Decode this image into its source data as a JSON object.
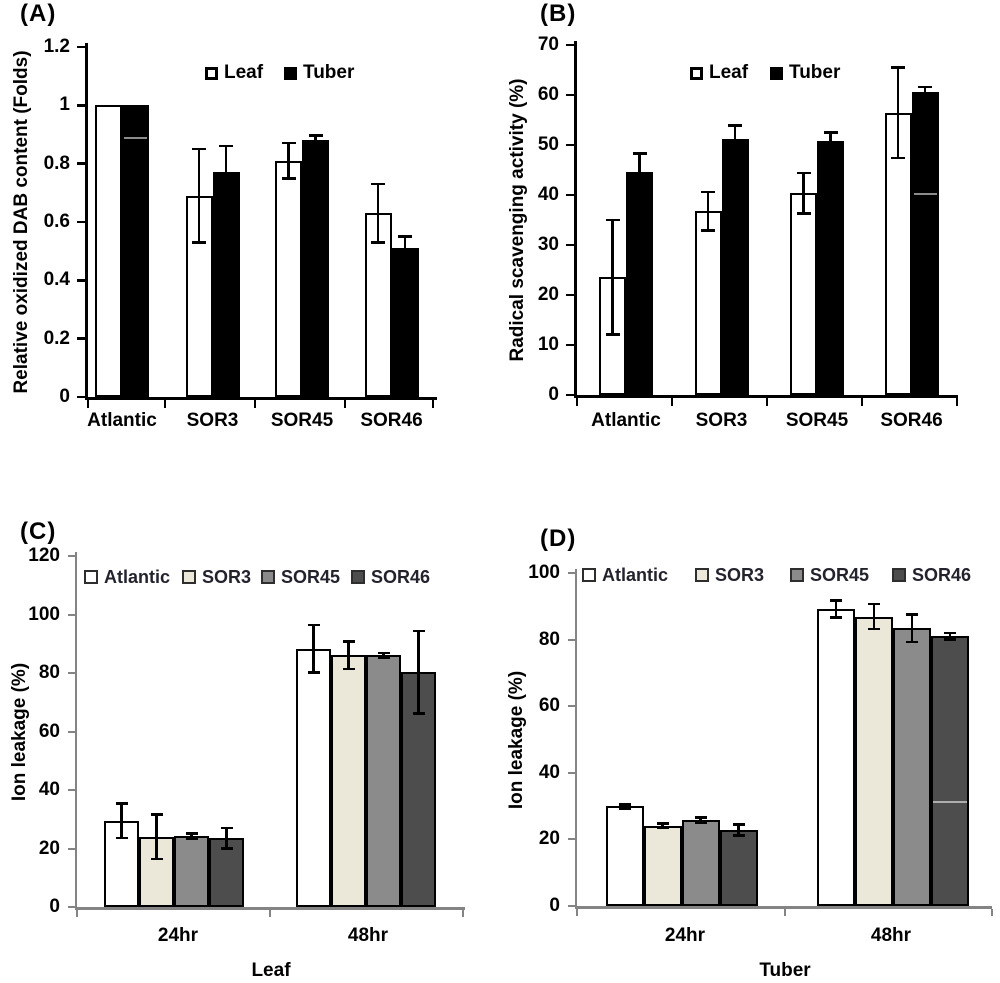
{
  "figure": {
    "background": "#ffffff",
    "panel_labels": [
      "(A)",
      "(B)",
      "(C)",
      "(D)"
    ]
  },
  "colors": {
    "bar_outline": "#000000",
    "axis_black": "#000000",
    "axis_gray": "#848484",
    "series_atlantic": "#ffffff",
    "series_sor3": "#ebe7d9",
    "series_sor45": "#8b8b8b",
    "series_sor46": "#4d4d4d",
    "legend_text_dark": "#23232e"
  },
  "chart_data": [
    {
      "panel": "(A)",
      "type": "bar",
      "title": "",
      "ylabel": "Relative oxidized DAB content (Folds)",
      "xlabel": "",
      "ylim": [
        0,
        1.2
      ],
      "yticks": [
        0,
        0.2,
        0.4,
        0.6,
        0.8,
        1,
        1.2
      ],
      "ytick_labels": [
        "0",
        "0.2",
        "0.4",
        "0.6",
        "0.8",
        "1",
        "1.2"
      ],
      "categories": [
        "Atlantic",
        "SOR3",
        "SOR45",
        "SOR46"
      ],
      "series": [
        {
          "name": "Leaf",
          "color": "#ffffff",
          "values": [
            1.0,
            0.69,
            0.81,
            0.63
          ],
          "errors": [
            0,
            0.16,
            0.06,
            0.1
          ]
        },
        {
          "name": "Tuber",
          "color": "#000000",
          "values": [
            1.0,
            0.77,
            0.88,
            0.51
          ],
          "errors": [
            0,
            0.09,
            0.015,
            0.04
          ]
        }
      ],
      "legend": {
        "entries": [
          "Leaf",
          "Tuber"
        ],
        "position": "top-center-inside"
      },
      "grid": false,
      "inner_lines": [
        {
          "category": "Atlantic",
          "series": "Tuber",
          "value": 0.89
        }
      ]
    },
    {
      "panel": "(B)",
      "type": "bar",
      "title": "",
      "ylabel": "Radical scavenging activity (%)",
      "xlabel": "",
      "ylim": [
        0,
        70
      ],
      "yticks": [
        0,
        10,
        20,
        30,
        40,
        50,
        60,
        70
      ],
      "ytick_labels": [
        "0",
        "10",
        "20",
        "30",
        "40",
        "50",
        "60",
        "70"
      ],
      "categories": [
        "Atlantic",
        "SOR3",
        "SOR45",
        "SOR46"
      ],
      "series": [
        {
          "name": "Leaf",
          "color": "#ffffff",
          "values": [
            23.6,
            36.8,
            40.4,
            56.5
          ],
          "errors": [
            11.4,
            3.8,
            4.0,
            9.0
          ]
        },
        {
          "name": "Tuber",
          "color": "#000000",
          "values": [
            44.7,
            51.2,
            50.9,
            60.6
          ],
          "errors": [
            3.6,
            2.7,
            1.6,
            1.0
          ]
        }
      ],
      "legend": {
        "entries": [
          "Leaf",
          "Tuber"
        ],
        "position": "top-center-inside"
      },
      "grid": false,
      "inner_lines": [
        {
          "category": "SOR46",
          "series": "Tuber",
          "value": 40.4
        }
      ]
    },
    {
      "panel": "(C)",
      "type": "bar",
      "title": "",
      "ylabel": "Ion leakage (%)",
      "xlabel": "Leaf",
      "ylim": [
        0,
        120
      ],
      "yticks": [
        0,
        20,
        40,
        60,
        80,
        100,
        120
      ],
      "ytick_labels": [
        "0",
        "20",
        "40",
        "60",
        "80",
        "100",
        "120"
      ],
      "categories": [
        "24hr",
        "48hr"
      ],
      "series": [
        {
          "name": "Atlantic",
          "color": "#ffffff",
          "values": [
            29.5,
            88.3
          ],
          "errors": [
            5.8,
            8.0
          ]
        },
        {
          "name": "SOR3",
          "color": "#ebe7d9",
          "values": [
            24.0,
            86.0
          ],
          "errors": [
            7.5,
            4.6
          ]
        },
        {
          "name": "SOR45",
          "color": "#8b8b8b",
          "values": [
            24.3,
            86.0
          ],
          "errors": [
            0.8,
            0.8
          ]
        },
        {
          "name": "SOR46",
          "color": "#4d4d4d",
          "values": [
            23.5,
            80.3
          ],
          "errors": [
            3.4,
            14.0
          ]
        }
      ],
      "legend": {
        "entries": [
          "Atlantic",
          "SOR3",
          "SOR45",
          "SOR46"
        ],
        "position": "top-row-inside"
      },
      "grid": false,
      "inner_lines": []
    },
    {
      "panel": "(D)",
      "type": "bar",
      "title": "",
      "ylabel": "Ion leakage (%)",
      "xlabel": "Tuber",
      "ylim": [
        0,
        100
      ],
      "yticks": [
        0,
        20,
        40,
        60,
        80,
        100
      ],
      "ytick_labels": [
        "0",
        "20",
        "40",
        "60",
        "80",
        "100"
      ],
      "categories": [
        "24hr",
        "48hr"
      ],
      "series": [
        {
          "name": "Atlantic",
          "color": "#ffffff",
          "values": [
            29.9,
            89.2
          ],
          "errors": [
            0.5,
            2.5
          ]
        },
        {
          "name": "SOR3",
          "color": "#ebe7d9",
          "values": [
            24.1,
            86.9
          ],
          "errors": [
            0.6,
            3.7
          ]
        },
        {
          "name": "SOR45",
          "color": "#8b8b8b",
          "values": [
            25.8,
            83.4
          ],
          "errors": [
            0.7,
            4.0
          ]
        },
        {
          "name": "SOR46",
          "color": "#4d4d4d",
          "values": [
            22.8,
            81.0
          ],
          "errors": [
            1.6,
            0.9
          ]
        }
      ],
      "legend": {
        "entries": [
          "Atlantic",
          "SOR3",
          "SOR45",
          "SOR46"
        ],
        "position": "top-row-inside"
      },
      "grid": false,
      "inner_lines": [
        {
          "category": "48hr",
          "series": "SOR46",
          "value": 31.5
        }
      ]
    }
  ]
}
